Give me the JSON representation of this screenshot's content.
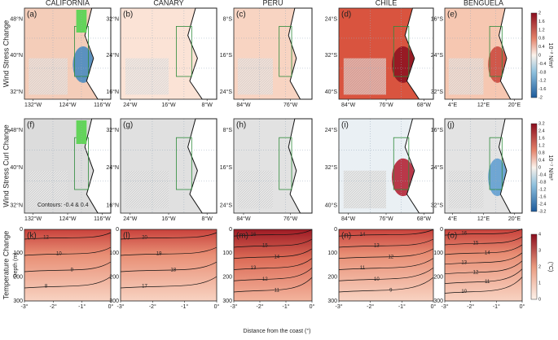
{
  "columns": [
    "CALIFORNIA",
    "CANARY",
    "PERU",
    "CHILE",
    "BENGUELA"
  ],
  "rows": [
    {
      "label": "Wind Stress Change",
      "panels": [
        {
          "letter": "(a)",
          "xticks": [
            "132°W",
            "124°W",
            "116°W"
          ],
          "yticks": [
            "48°N",
            "40°N",
            "32°N"
          ]
        },
        {
          "letter": "(b)",
          "xticks": [
            "24°W",
            "16°W",
            "8°W"
          ],
          "yticks": [
            "32°N",
            "24°N",
            "16°N"
          ]
        },
        {
          "letter": "(c)",
          "xticks": [
            "84°W",
            "76°W"
          ],
          "yticks": [
            "8°S",
            "16°S",
            "24°S"
          ]
        },
        {
          "letter": "(d)",
          "xticks": [
            "84°W",
            "76°W",
            "68°W"
          ],
          "yticks": [
            "24°S",
            "32°S",
            "40°S"
          ]
        },
        {
          "letter": "(e)",
          "xticks": [
            "4°E",
            "12°E",
            "20°E"
          ],
          "yticks": [
            "16°S",
            "24°S",
            "32°S"
          ]
        }
      ],
      "colorbar": {
        "unit": "10⁻² N/m²",
        "ticks": [
          "2",
          "1.6",
          "1.2",
          "0.8",
          "0.4",
          "0",
          "-0.4",
          "-0.8",
          "-1.2",
          "-1.6",
          "-2"
        ]
      }
    },
    {
      "label": "Wind Stress Curl Change",
      "panels": [
        {
          "letter": "(f)",
          "xticks": [
            "132°W",
            "124°W",
            "116°W"
          ],
          "yticks": [
            "48°N",
            "40°N",
            "32°N"
          ]
        },
        {
          "letter": "(g)",
          "xticks": [
            "24°W",
            "16°W",
            "8°W"
          ],
          "yticks": [
            "32°N",
            "24°N",
            "16°N"
          ]
        },
        {
          "letter": "(h)",
          "xticks": [
            "84°W",
            "76°W"
          ],
          "yticks": [
            "8°S",
            "16°S",
            "24°S"
          ]
        },
        {
          "letter": "(i)",
          "xticks": [
            "84°W",
            "76°W",
            "68°W"
          ],
          "yticks": [
            "24°S",
            "32°S",
            "40°S"
          ]
        },
        {
          "letter": "(j)",
          "xticks": [
            "4°E",
            "12°E",
            "20°E"
          ],
          "yticks": [
            "16°S",
            "24°S",
            "32°S"
          ]
        }
      ],
      "colorbar": {
        "unit": "10⁻⁷ N/m³",
        "ticks": [
          "3.2",
          "2.4",
          "1.6",
          "1.2",
          "0.8",
          "0.4",
          "0",
          "-0.4",
          "-0.8",
          "-1.2",
          "-1.6",
          "-2.4",
          "-3.2"
        ]
      }
    },
    {
      "label": "Temperature Change",
      "ylabel": "Depth (m)",
      "panels": [
        {
          "letter": "(k)",
          "xticks": [
            "-3°",
            "-2°",
            "-1°",
            "0°"
          ],
          "yticks": [
            "0",
            "100",
            "200",
            "300"
          ],
          "contours": [
            "12",
            "10",
            "9",
            "8"
          ]
        },
        {
          "letter": "(l)",
          "xticks": [
            "-3°",
            "-2°",
            "-1°",
            "0°"
          ],
          "yticks": [
            "0",
            "100",
            "200",
            "300"
          ],
          "contours": [
            "20",
            "19",
            "18",
            "17"
          ]
        },
        {
          "letter": "(m)",
          "xticks": [
            "-3°",
            "-2°",
            "-1°",
            "0°"
          ],
          "yticks": [
            "0",
            "100",
            "200",
            "300"
          ],
          "contours": [
            "16",
            "15",
            "14",
            "13",
            "12",
            "11"
          ]
        },
        {
          "letter": "(n)",
          "xticks": [
            "-3°",
            "-2°",
            "-1°",
            "0°"
          ],
          "yticks": [
            "0",
            "100",
            "200",
            "300"
          ],
          "contours": [
            "14",
            "13",
            "12",
            "11",
            "10",
            "9"
          ]
        },
        {
          "letter": "(o)",
          "xticks": [
            "-3°",
            "-2°",
            "-1°",
            "0°"
          ],
          "yticks": [
            "0",
            "100",
            "200",
            "300"
          ],
          "contours": [
            "16",
            "15",
            "14",
            "13",
            "12",
            "11",
            "10"
          ]
        }
      ],
      "colorbar": {
        "unit": "(°C)",
        "ticks": [
          "4",
          "3",
          "2",
          "1",
          "0"
        ]
      }
    }
  ],
  "annotation": "Contours: -0.4 & 0.4",
  "xlabel": "Distance from the coast (°)"
}
